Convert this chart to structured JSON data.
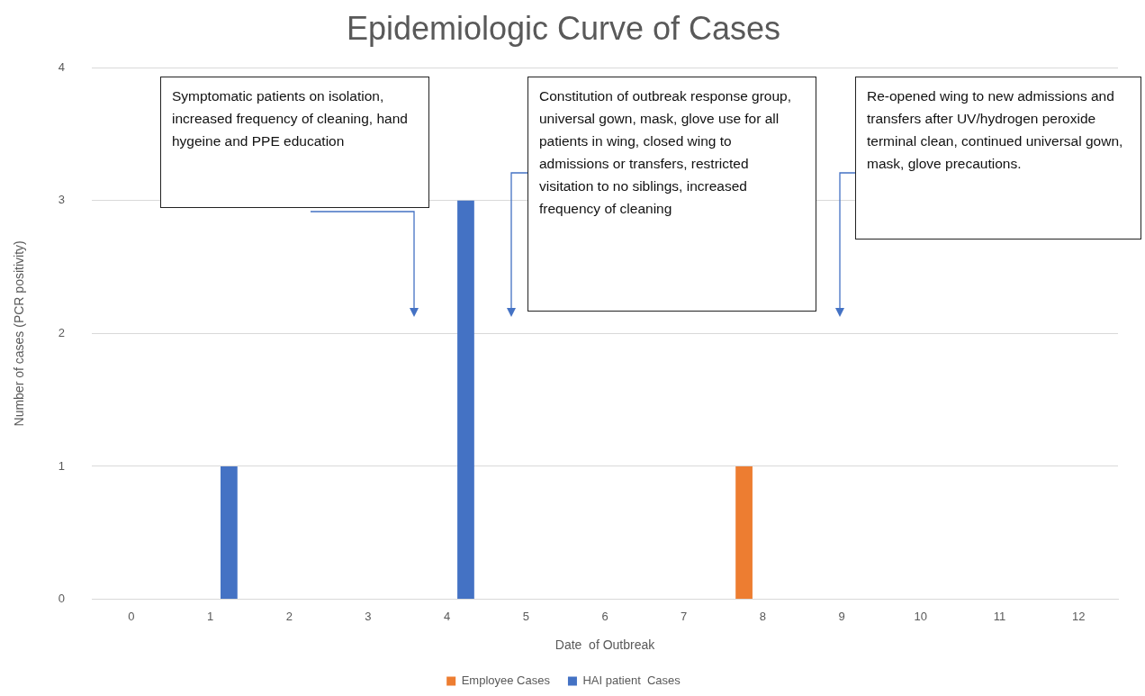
{
  "chart_data": {
    "type": "bar",
    "title": "Epidemiologic Curve of Cases",
    "xlabel": "Date  of Outbreak",
    "ylabel": "Number of cases (PCR positivity)",
    "categories": [
      "0",
      "1",
      "2",
      "3",
      "4",
      "5",
      "6",
      "7",
      "8",
      "9",
      "10",
      "11",
      "12"
    ],
    "series": [
      {
        "name": "Employee Cases",
        "color": "#ed7d31",
        "values": [
          0,
          0,
          0,
          0,
          0,
          0,
          0,
          0,
          1,
          0,
          0,
          0,
          0
        ]
      },
      {
        "name": "HAI patient  Cases",
        "color": "#4472c4",
        "values": [
          0,
          1,
          0,
          0,
          3,
          0,
          0,
          0,
          0,
          0,
          0,
          0,
          0
        ]
      }
    ],
    "ylim": [
      0,
      4
    ],
    "yticks": [
      0,
      1,
      2,
      3,
      4
    ],
    "grid": "y",
    "legend": "bottom",
    "annotations": [
      "Symptomatic patients on isolation, increased frequency of cleaning, hand hygeine and PPE education",
      "Constitution of outbreak response group, universal gown, mask, glove use for all patients in wing, closed wing to admissions or transfers, restricted visitation to no siblings, increased frequency of cleaning",
      "Re-opened wing to new admissions and transfers after UV/hydrogen peroxide terminal clean, continued universal gown, mask, glove precautions."
    ]
  }
}
